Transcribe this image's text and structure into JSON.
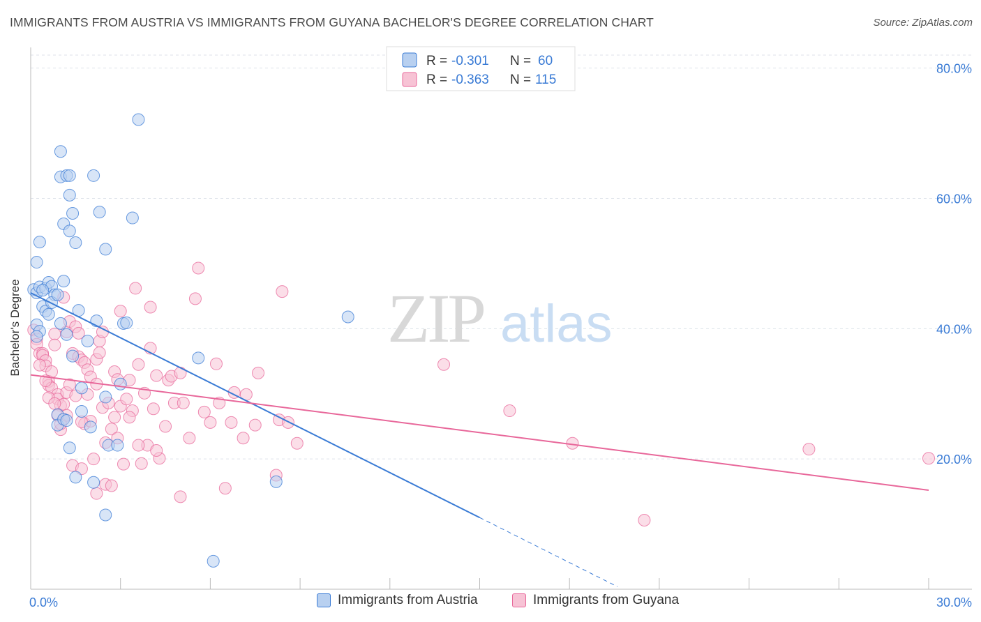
{
  "title": "IMMIGRANTS FROM AUSTRIA VS IMMIGRANTS FROM GUYANA BACHELOR'S DEGREE CORRELATION CHART",
  "source": "Source: ZipAtlas.com",
  "watermark": {
    "zip": "ZIP",
    "atlas": "atlas"
  },
  "colors": {
    "austria": "#3a7bd5",
    "austria_fill": "#b8d0f0",
    "guyana": "#e8679a",
    "guyana_fill": "#f7c3d5",
    "grid": "#dde2ea",
    "tick_text": "#3a7bd5"
  },
  "legend": {
    "austria": {
      "r_label": "R =",
      "r_value": "-0.301",
      "n_label": "N =",
      "n_value": "60"
    },
    "guyana": {
      "r_label": "R =",
      "r_value": "-0.363",
      "n_label": "N =",
      "n_value": "115"
    }
  },
  "bottom_legend": {
    "austria": "Immigrants from Austria",
    "guyana": "Immigrants from Guyana"
  },
  "chart_data": {
    "type": "scatter",
    "title": "IMMIGRANTS FROM AUSTRIA VS IMMIGRANTS FROM GUYANA BACHELOR'S DEGREE CORRELATION CHART",
    "xlabel": "",
    "ylabel": "Bachelor's Degree",
    "xlim": [
      0,
      30
    ],
    "ylim": [
      0,
      82
    ],
    "x_tick_labels": [
      "0.0%",
      "30.0%"
    ],
    "y_ticks": [
      20,
      40,
      60,
      80
    ],
    "y_tick_labels": [
      "20.0%",
      "40.0%",
      "60.0%",
      "80.0%"
    ],
    "grid": true,
    "series": [
      {
        "name": "Immigrants from Austria",
        "r": -0.301,
        "n": 60,
        "trend": {
          "x0": 0,
          "y0": 45.5,
          "x1": 15,
          "y1": 11.0,
          "dash_to_x": 19.6,
          "dash_to_y": 0.4
        },
        "points": [
          [
            0.1,
            46
          ],
          [
            0.2,
            45.5
          ],
          [
            0.2,
            50.2
          ],
          [
            0.3,
            53.3
          ],
          [
            0.3,
            46.4
          ],
          [
            0.5,
            46.2
          ],
          [
            0.4,
            43.4
          ],
          [
            0.6,
            47.1
          ],
          [
            0.5,
            42.7
          ],
          [
            0.7,
            46.5
          ],
          [
            0.6,
            42.2
          ],
          [
            0.8,
            45.2
          ],
          [
            0.7,
            44
          ],
          [
            0.9,
            45.2
          ],
          [
            1.0,
            40.8
          ],
          [
            1.0,
            63.3
          ],
          [
            1.0,
            67.2
          ],
          [
            1.1,
            56.1
          ],
          [
            1.1,
            47.3
          ],
          [
            1.2,
            63.5
          ],
          [
            1.3,
            63.5
          ],
          [
            1.2,
            39.1
          ],
          [
            1.3,
            60.5
          ],
          [
            1.4,
            35.8
          ],
          [
            1.3,
            55
          ],
          [
            1.4,
            57.7
          ],
          [
            1.5,
            53.2
          ],
          [
            1.6,
            42.8
          ],
          [
            1.7,
            30.9
          ],
          [
            1.7,
            27.3
          ],
          [
            1.9,
            38.1
          ],
          [
            2.1,
            63.5
          ],
          [
            2.0,
            24.9
          ],
          [
            2.3,
            57.9
          ],
          [
            2.2,
            41.2
          ],
          [
            2.5,
            52.2
          ],
          [
            2.5,
            29.5
          ],
          [
            2.6,
            22.1
          ],
          [
            2.5,
            11.4
          ],
          [
            2.9,
            22.1
          ],
          [
            3.0,
            31.5
          ],
          [
            3.1,
            40.8
          ],
          [
            3.2,
            40.9
          ],
          [
            3.4,
            57
          ],
          [
            3.6,
            72.1
          ],
          [
            5.6,
            35.5
          ],
          [
            6.1,
            4.3
          ],
          [
            8.2,
            16.5
          ],
          [
            10.6,
            41.8
          ],
          [
            0.9,
            26.8
          ],
          [
            0.9,
            25.2
          ],
          [
            1.1,
            26.1
          ],
          [
            1.2,
            25.9
          ],
          [
            1.3,
            21.7
          ],
          [
            1.5,
            17.2
          ],
          [
            2.1,
            16.4
          ],
          [
            0.2,
            40.6
          ],
          [
            0.3,
            39.6
          ],
          [
            0.2,
            38.8
          ],
          [
            0.4,
            45.9
          ]
        ]
      },
      {
        "name": "Immigrants from Guyana",
        "r": -0.363,
        "n": 115,
        "trend": {
          "x0": 0,
          "y0": 32.9,
          "x1": 30,
          "y1": 15.2
        },
        "points": [
          [
            0.1,
            39.8
          ],
          [
            0.2,
            38.4
          ],
          [
            0.2,
            37.6
          ],
          [
            0.3,
            36.2
          ],
          [
            0.4,
            36.2
          ],
          [
            0.4,
            35.9
          ],
          [
            0.5,
            35.1
          ],
          [
            0.5,
            34.3
          ],
          [
            0.6,
            31.9
          ],
          [
            0.6,
            31.3
          ],
          [
            0.7,
            33.4
          ],
          [
            0.7,
            30.9
          ],
          [
            0.8,
            39.2
          ],
          [
            0.8,
            37.5
          ],
          [
            0.9,
            29.9
          ],
          [
            0.9,
            29.2
          ],
          [
            1.0,
            28.2
          ],
          [
            1.0,
            24.5
          ],
          [
            1.1,
            28.4
          ],
          [
            1.1,
            26.1
          ],
          [
            1.1,
            44.8
          ],
          [
            1.2,
            30.2
          ],
          [
            1.2,
            39.5
          ],
          [
            1.3,
            41.1
          ],
          [
            1.3,
            31.4
          ],
          [
            1.4,
            36.2
          ],
          [
            1.4,
            19
          ],
          [
            1.5,
            29.7
          ],
          [
            1.5,
            40.3
          ],
          [
            1.6,
            39.3
          ],
          [
            1.6,
            35.7
          ],
          [
            1.7,
            35.2
          ],
          [
            1.7,
            18.5
          ],
          [
            1.8,
            34.8
          ],
          [
            1.8,
            25.4
          ],
          [
            1.9,
            33.7
          ],
          [
            1.9,
            29.9
          ],
          [
            2.0,
            32.6
          ],
          [
            2.0,
            25.8
          ],
          [
            2.1,
            20
          ],
          [
            2.2,
            35.3
          ],
          [
            2.2,
            31.5
          ],
          [
            2.3,
            38.1
          ],
          [
            2.3,
            36.3
          ],
          [
            2.4,
            39.5
          ],
          [
            2.4,
            27.9
          ],
          [
            2.5,
            16.1
          ],
          [
            2.6,
            28.6
          ],
          [
            2.7,
            24.6
          ],
          [
            2.7,
            15.9
          ],
          [
            2.8,
            33.4
          ],
          [
            2.8,
            26.4
          ],
          [
            2.9,
            32.2
          ],
          [
            3.0,
            28.1
          ],
          [
            3.0,
            42.7
          ],
          [
            3.1,
            19.2
          ],
          [
            3.2,
            29.2
          ],
          [
            3.3,
            32.1
          ],
          [
            3.4,
            27.4
          ],
          [
            3.5,
            46.2
          ],
          [
            3.6,
            34.5
          ],
          [
            3.7,
            19.3
          ],
          [
            3.8,
            30.1
          ],
          [
            3.9,
            22.1
          ],
          [
            4.0,
            43.3
          ],
          [
            4.1,
            27.7
          ],
          [
            4.2,
            32.8
          ],
          [
            4.3,
            20.1
          ],
          [
            4.5,
            25
          ],
          [
            4.6,
            32.1
          ],
          [
            4.7,
            32.7
          ],
          [
            4.8,
            28.6
          ],
          [
            5.0,
            14.2
          ],
          [
            5.1,
            28.6
          ],
          [
            5.3,
            23.2
          ],
          [
            5.5,
            44.6
          ],
          [
            5.6,
            49.3
          ],
          [
            5.8,
            27.2
          ],
          [
            6.0,
            25.6
          ],
          [
            6.2,
            34.6
          ],
          [
            6.3,
            28.6
          ],
          [
            6.5,
            15.5
          ],
          [
            6.7,
            25.6
          ],
          [
            6.8,
            30.2
          ],
          [
            7.1,
            23.2
          ],
          [
            7.2,
            29.9
          ],
          [
            7.5,
            25.2
          ],
          [
            7.6,
            33.2
          ],
          [
            8.2,
            17.5
          ],
          [
            8.3,
            26
          ],
          [
            8.4,
            45.7
          ],
          [
            8.6,
            25.6
          ],
          [
            8.9,
            22.4
          ],
          [
            13.8,
            34.5
          ],
          [
            16.0,
            27.4
          ],
          [
            18.1,
            22.4
          ],
          [
            20.5,
            10.6
          ],
          [
            26.0,
            21.5
          ],
          [
            30.0,
            20.1
          ],
          [
            0.3,
            34.4
          ],
          [
            0.5,
            32
          ],
          [
            0.6,
            29.4
          ],
          [
            0.8,
            28.5
          ],
          [
            0.9,
            26.7
          ],
          [
            1.0,
            25.4
          ],
          [
            1.2,
            26.7
          ],
          [
            2.5,
            22.5
          ],
          [
            3.6,
            22.1
          ],
          [
            4.2,
            21.3
          ],
          [
            3.3,
            26.4
          ],
          [
            2.9,
            23.2
          ],
          [
            4.0,
            37
          ],
          [
            5.0,
            33.2
          ],
          [
            1.7,
            25.7
          ],
          [
            2.2,
            14.7
          ]
        ]
      }
    ]
  }
}
